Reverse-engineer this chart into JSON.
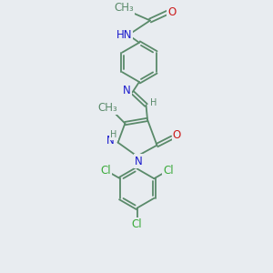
{
  "bg_color": "#e8ecf0",
  "bond_color": "#5a8a6a",
  "n_color": "#1a1acc",
  "o_color": "#cc1a1a",
  "cl_color": "#3aaa3a",
  "font_size": 8.5,
  "small_font": 7.0,
  "lw": 1.3,
  "fig_w": 3.0,
  "fig_h": 3.0,
  "dpi": 100,
  "xlim": [
    0,
    10
  ],
  "ylim": [
    0,
    10
  ]
}
